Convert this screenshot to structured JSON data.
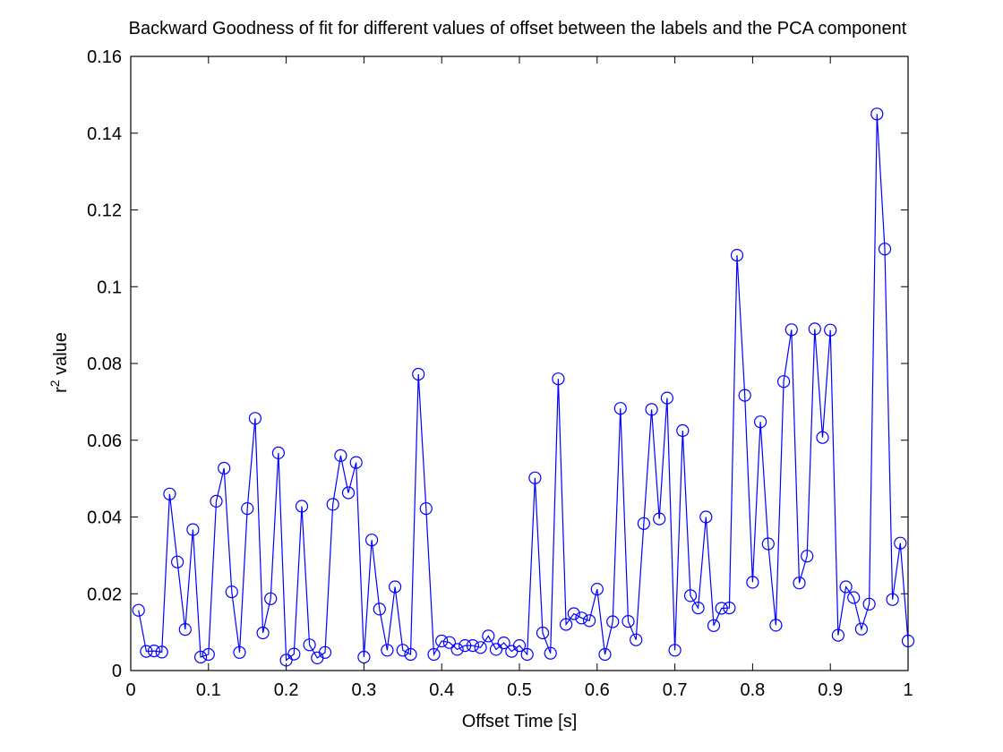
{
  "chart_data": {
    "type": "line",
    "title": "Backward Goodness of fit for different values of offset between the labels and the PCA component",
    "xlabel": "Offset Time [s]",
    "ylabel": {
      "base": "r",
      "superscript": "2",
      "rest": " value"
    },
    "xlim": [
      0,
      1
    ],
    "ylim": [
      0,
      0.16
    ],
    "xticks": [
      "0",
      "0.1",
      "0.2",
      "0.3",
      "0.4",
      "0.5",
      "0.6",
      "0.7",
      "0.8",
      "0.9",
      "1"
    ],
    "yticks": [
      "0",
      "0.02",
      "0.04",
      "0.06",
      "0.08",
      "0.1",
      "0.12",
      "0.14",
      "0.16"
    ],
    "grid": false,
    "marker": "circle",
    "series_color": "#0000ff",
    "x": [
      0.01,
      0.02,
      0.03,
      0.04,
      0.05,
      0.06,
      0.07,
      0.08,
      0.09,
      0.1,
      0.11,
      0.12,
      0.13,
      0.14,
      0.15,
      0.16,
      0.17,
      0.18,
      0.19,
      0.2,
      0.21,
      0.22,
      0.23,
      0.24,
      0.25,
      0.26,
      0.27,
      0.28,
      0.29,
      0.3,
      0.31,
      0.32,
      0.33,
      0.34,
      0.35,
      0.36,
      0.37,
      0.38,
      0.39,
      0.4,
      0.41,
      0.42,
      0.43,
      0.44,
      0.45,
      0.46,
      0.47,
      0.48,
      0.49,
      0.5,
      0.51,
      0.52,
      0.53,
      0.54,
      0.55,
      0.56,
      0.57,
      0.58,
      0.59,
      0.6,
      0.61,
      0.62,
      0.63,
      0.64,
      0.65,
      0.66,
      0.67,
      0.68,
      0.69,
      0.7,
      0.71,
      0.72,
      0.73,
      0.74,
      0.75,
      0.76,
      0.77,
      0.78,
      0.79,
      0.8,
      0.81,
      0.82,
      0.83,
      0.84,
      0.85,
      0.86,
      0.87,
      0.88,
      0.89,
      0.9,
      0.91,
      0.92,
      0.93,
      0.94,
      0.95,
      0.96,
      0.97,
      0.98,
      0.99,
      1.0
    ],
    "y": [
      0.0157,
      0.005,
      0.0051,
      0.0048,
      0.046,
      0.0283,
      0.0107,
      0.0367,
      0.0035,
      0.0042,
      0.0441,
      0.0527,
      0.0205,
      0.0047,
      0.0422,
      0.0657,
      0.0098,
      0.0187,
      0.0567,
      0.0027,
      0.0043,
      0.0428,
      0.0067,
      0.0033,
      0.0047,
      0.0433,
      0.056,
      0.0463,
      0.0542,
      0.0035,
      0.034,
      0.016,
      0.0053,
      0.0218,
      0.0053,
      0.0042,
      0.0772,
      0.0422,
      0.0042,
      0.0077,
      0.0073,
      0.0055,
      0.0065,
      0.0065,
      0.006,
      0.009,
      0.0055,
      0.0072,
      0.005,
      0.0065,
      0.0042,
      0.0502,
      0.0098,
      0.0045,
      0.076,
      0.012,
      0.0148,
      0.0137,
      0.013,
      0.0212,
      0.0042,
      0.0127,
      0.0683,
      0.0128,
      0.008,
      0.0383,
      0.068,
      0.0395,
      0.071,
      0.0053,
      0.0625,
      0.0195,
      0.0163,
      0.04,
      0.0117,
      0.0162,
      0.0163,
      0.1082,
      0.0717,
      0.023,
      0.0648,
      0.033,
      0.0118,
      0.0753,
      0.0888,
      0.0228,
      0.0298,
      0.089,
      0.0607,
      0.0887,
      0.0092,
      0.0218,
      0.019,
      0.0108,
      0.0173,
      0.145,
      0.1098,
      0.0185,
      0.0332,
      0.0077
    ]
  }
}
